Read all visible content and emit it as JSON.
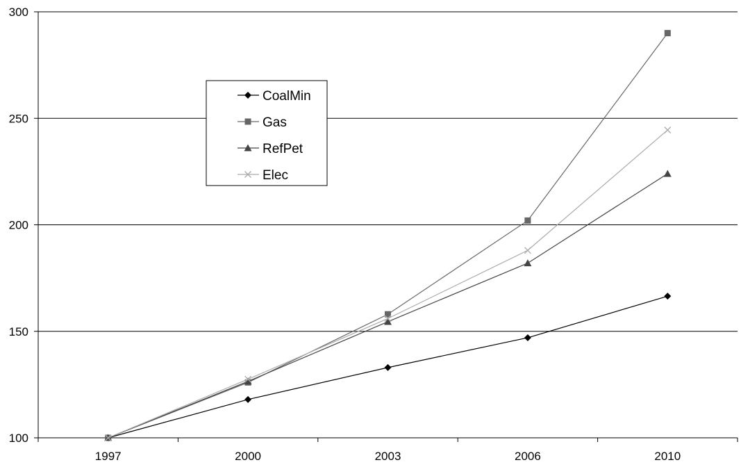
{
  "chart_data": {
    "type": "line",
    "title": "",
    "xlabel": "",
    "ylabel": "",
    "categories": [
      "1997",
      "2000",
      "2003",
      "2006",
      "2010"
    ],
    "ylim": [
      100,
      300
    ],
    "yticks": [
      100,
      150,
      200,
      250,
      300
    ],
    "grid": "horizontal",
    "legend": {
      "position": "top-left",
      "framed": true
    },
    "series": [
      {
        "name": "CoalMin",
        "marker": "diamond",
        "color": "#000000",
        "values": [
          100,
          118,
          133,
          147,
          166.5
        ]
      },
      {
        "name": "Gas",
        "marker": "square",
        "color": "#666666",
        "values": [
          100,
          126,
          158,
          202,
          290
        ]
      },
      {
        "name": "RefPet",
        "marker": "triangle",
        "color": "#444444",
        "values": [
          100,
          126.5,
          154.5,
          182,
          224
        ]
      },
      {
        "name": "Elec",
        "marker": "x",
        "color": "#aaaaaa",
        "values": [
          100,
          127.5,
          156,
          188,
          244.5
        ]
      }
    ]
  }
}
